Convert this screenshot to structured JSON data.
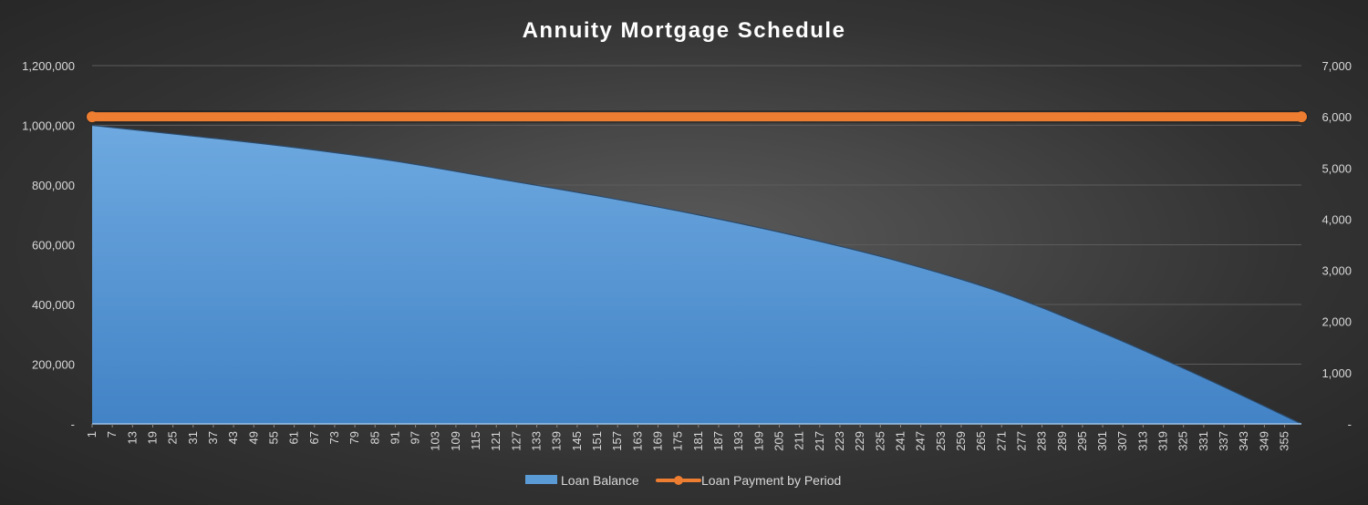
{
  "chart_data": {
    "type": "area+line",
    "title": "Annuity Mortgage Schedule",
    "x": {
      "start": 1,
      "end": 360,
      "tick_labels": [
        "1",
        "7",
        "13",
        "19",
        "25",
        "31",
        "37",
        "43",
        "49",
        "55",
        "61",
        "67",
        "73",
        "79",
        "85",
        "91",
        "97",
        "103",
        "109",
        "115",
        "121",
        "127",
        "133",
        "139",
        "145",
        "151",
        "157",
        "163",
        "169",
        "175",
        "181",
        "187",
        "193",
        "199",
        "205",
        "211",
        "217",
        "223",
        "229",
        "235",
        "241",
        "247",
        "253",
        "259",
        "265",
        "271",
        "277",
        "283",
        "289",
        "295",
        "301",
        "307",
        "313",
        "319",
        "325",
        "331",
        "337",
        "343",
        "349",
        "355"
      ]
    },
    "y_left": {
      "ylim": [
        0,
        1200000
      ],
      "tick_labels": [
        "-",
        "200,000",
        "400,000",
        "600,000",
        "800,000",
        "1,000,000",
        "1,200,000"
      ]
    },
    "y_right": {
      "ylim": [
        0,
        7000
      ],
      "tick_labels": [
        "-",
        "1,000",
        "2,000",
        "3,000",
        "4,000",
        "5,000",
        "6,000",
        "7,000"
      ]
    },
    "grid": "horizontal",
    "legend_position": "bottom",
    "series": [
      {
        "name": "Loan Balance",
        "kind": "area",
        "axis": "left",
        "color": "#5b9bd5",
        "x": [
          1,
          31,
          61,
          91,
          121,
          151,
          181,
          211,
          241,
          271,
          301,
          331,
          360
        ],
        "values": [
          1000000,
          964000,
          926000,
          880000,
          822000,
          764000,
          700000,
          627000,
          543000,
          440000,
          305000,
          155000,
          0
        ]
      },
      {
        "name": "Loan Payment by Period",
        "kind": "line",
        "axis": "right",
        "color": "#ed7d31",
        "x": [
          1,
          360
        ],
        "values": [
          6000,
          6000
        ]
      }
    ]
  }
}
